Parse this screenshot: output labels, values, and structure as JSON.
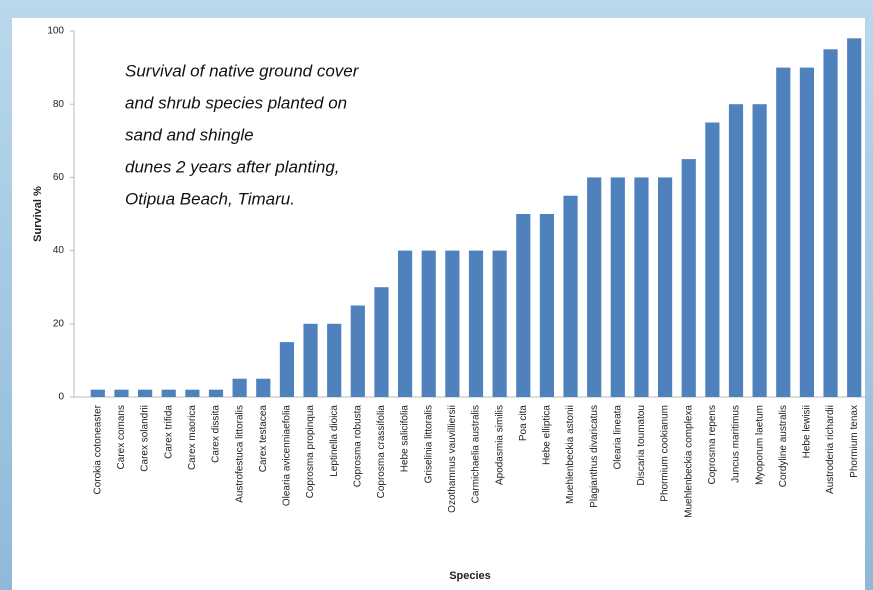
{
  "chart_data": {
    "type": "bar",
    "title": [
      "Survival of native ground cover",
      "and shrub species planted on",
      "sand and shingle",
      "dunes 2 years after planting,",
      "Otipua Beach, Timaru."
    ],
    "x_label": "Species",
    "y_label": "Survival %",
    "categories": [
      "Corokia cotoneaster",
      "Carex comans",
      "Carex solandrii",
      "Carex trifida",
      "Carex maorica",
      "Carex dissita",
      "Austrofestuca littoralis",
      "Carex testacea",
      "Olearia avicenniaefolia",
      "Coprosma propinqua",
      "Leptinella dioica",
      "Coprosma robusta",
      "Coprosma crassifolia",
      "Hebe salicifolia",
      "Griselinia littoralis",
      "Ozothamnus vauvilliersii",
      "Carmichaelia australis",
      "Apodasmia similis",
      "Poa cita",
      "Hebe elliptica",
      "Muehlenbeckia astonii",
      "Plagianthus divaricatus",
      "Olearia lineata",
      "Discaria toumatou",
      "Phormium cookianum",
      "Muehlenbeckia complexa",
      "Coprosma repens",
      "Juncus maritimus",
      "Myoporum laetum",
      "Cordyline australis",
      "Hebe lewisii",
      "Austroderia richardii",
      "Phormium tenax"
    ],
    "values": [
      2,
      2,
      2,
      2,
      2,
      2,
      5,
      5,
      15,
      20,
      20,
      25,
      30,
      40,
      40,
      40,
      40,
      40,
      50,
      50,
      55,
      60,
      60,
      60,
      60,
      65,
      75,
      80,
      80,
      90,
      90,
      95,
      98
    ],
    "color": "#4f81bd",
    "ylim": [
      0,
      100
    ],
    "yticks": [
      0,
      20,
      40,
      60,
      80,
      100
    ],
    "grid": false
  }
}
